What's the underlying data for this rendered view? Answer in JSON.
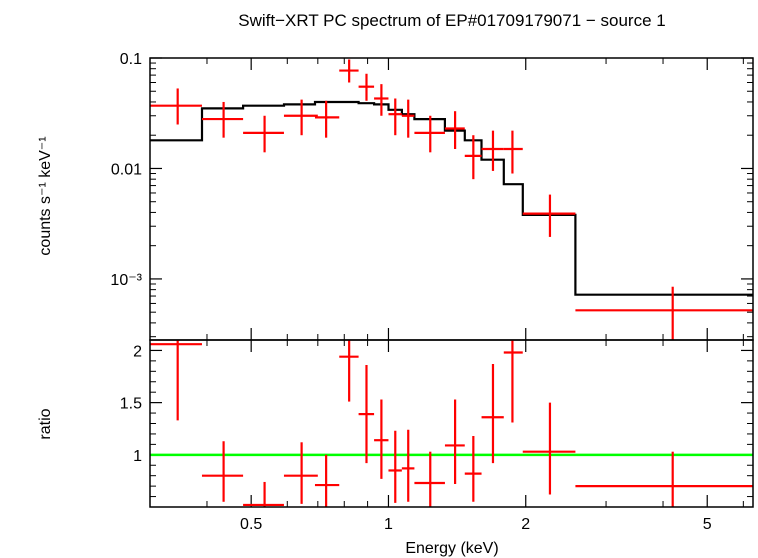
{
  "chart_data": {
    "type": "scatter",
    "title": "Swift−XRT PC spectrum of EP#01709179071 − source 1",
    "xlabel": "Energy (keV)",
    "x_scale": "log",
    "xlim": [
      0.3,
      6.3
    ],
    "x_ticks": [
      {
        "value": 0.5,
        "label": "0.5"
      },
      {
        "value": 1,
        "label": "1"
      },
      {
        "value": 2,
        "label": "2"
      },
      {
        "value": 5,
        "label": "5"
      }
    ],
    "colors": {
      "data": "#ff0000",
      "model": "#000000",
      "unity": "#00ff00"
    },
    "top_panel": {
      "ylabel": "counts s⁻¹ keV⁻¹",
      "y_scale": "log",
      "ylim": [
        0.00028,
        0.1
      ],
      "y_ticks": [
        {
          "value": 0.1,
          "label": "0.1"
        },
        {
          "value": 0.01,
          "label": "0.01"
        },
        {
          "value": 0.001,
          "label": "10⁻³"
        }
      ],
      "series": [
        {
          "type": "errorbar",
          "points": [
            {
              "x": 0.345,
              "xlo": 0.3,
              "xhi": 0.39,
              "y": 0.037,
              "ylo": 0.025,
              "yhi": 0.053
            },
            {
              "x": 0.435,
              "xlo": 0.39,
              "xhi": 0.48,
              "y": 0.028,
              "ylo": 0.019,
              "yhi": 0.04
            },
            {
              "x": 0.535,
              "xlo": 0.48,
              "xhi": 0.59,
              "y": 0.021,
              "ylo": 0.014,
              "yhi": 0.03
            },
            {
              "x": 0.645,
              "xlo": 0.59,
              "xhi": 0.7,
              "y": 0.03,
              "ylo": 0.02,
              "yhi": 0.042
            },
            {
              "x": 0.73,
              "xlo": 0.69,
              "xhi": 0.78,
              "y": 0.029,
              "ylo": 0.019,
              "yhi": 0.041
            },
            {
              "x": 0.82,
              "xlo": 0.78,
              "xhi": 0.86,
              "y": 0.077,
              "ylo": 0.06,
              "yhi": 0.097
            },
            {
              "x": 0.895,
              "xlo": 0.86,
              "xhi": 0.93,
              "y": 0.055,
              "ylo": 0.041,
              "yhi": 0.072
            },
            {
              "x": 0.965,
              "xlo": 0.93,
              "xhi": 1.0,
              "y": 0.043,
              "ylo": 0.03,
              "yhi": 0.058
            },
            {
              "x": 1.035,
              "xlo": 1.0,
              "xhi": 1.07,
              "y": 0.031,
              "ylo": 0.02,
              "yhi": 0.043
            },
            {
              "x": 1.105,
              "xlo": 1.07,
              "xhi": 1.14,
              "y": 0.03,
              "ylo": 0.019,
              "yhi": 0.042
            },
            {
              "x": 1.235,
              "xlo": 1.14,
              "xhi": 1.33,
              "y": 0.021,
              "ylo": 0.014,
              "yhi": 0.03
            },
            {
              "x": 1.4,
              "xlo": 1.33,
              "xhi": 1.47,
              "y": 0.023,
              "ylo": 0.015,
              "yhi": 0.033
            },
            {
              "x": 1.535,
              "xlo": 1.47,
              "xhi": 1.6,
              "y": 0.013,
              "ylo": 0.008,
              "yhi": 0.02
            },
            {
              "x": 1.695,
              "xlo": 1.6,
              "xhi": 1.79,
              "y": 0.015,
              "ylo": 0.0095,
              "yhi": 0.022
            },
            {
              "x": 1.87,
              "xlo": 1.79,
              "xhi": 1.97,
              "y": 0.015,
              "ylo": 0.009,
              "yhi": 0.022
            },
            {
              "x": 2.26,
              "xlo": 1.97,
              "xhi": 2.57,
              "y": 0.0039,
              "ylo": 0.0024,
              "yhi": 0.0058
            },
            {
              "x": 4.2,
              "xlo": 2.57,
              "xhi": 6.3,
              "y": 0.00052,
              "ylo": 0.00028,
              "yhi": 0.00085
            }
          ]
        },
        {
          "type": "step",
          "edges": [
            0.3,
            0.39,
            0.48,
            0.59,
            0.69,
            0.78,
            0.86,
            0.93,
            1.0,
            1.07,
            1.14,
            1.33,
            1.47,
            1.6,
            1.79,
            1.97,
            2.57,
            6.3
          ],
          "values": [
            0.018,
            0.035,
            0.037,
            0.038,
            0.04,
            0.04,
            0.039,
            0.038,
            0.034,
            0.031,
            0.028,
            0.022,
            0.018,
            0.012,
            0.0072,
            0.0038,
            0.00072
          ]
        }
      ]
    },
    "bottom_panel": {
      "ylabel": "ratio",
      "y_scale": "linear",
      "ylim": [
        0.5,
        2.1
      ],
      "y_ticks": [
        {
          "value": 1,
          "label": "1"
        },
        {
          "value": 1.5,
          "label": "1.5"
        },
        {
          "value": 2,
          "label": "2"
        }
      ],
      "unity_line": 1,
      "series": [
        {
          "type": "errorbar",
          "points": [
            {
              "x": 0.345,
              "xlo": 0.3,
              "xhi": 0.39,
              "y": 2.06,
              "ylo": 1.33,
              "yhi": 2.1
            },
            {
              "x": 0.435,
              "xlo": 0.39,
              "xhi": 0.48,
              "y": 0.8,
              "ylo": 0.55,
              "yhi": 1.13
            },
            {
              "x": 0.535,
              "xlo": 0.48,
              "xhi": 0.59,
              "y": 0.52,
              "ylo": 0.5,
              "yhi": 0.74
            },
            {
              "x": 0.645,
              "xlo": 0.59,
              "xhi": 0.7,
              "y": 0.8,
              "ylo": 0.53,
              "yhi": 1.12
            },
            {
              "x": 0.73,
              "xlo": 0.69,
              "xhi": 0.78,
              "y": 0.71,
              "ylo": 0.5,
              "yhi": 1.0
            },
            {
              "x": 0.82,
              "xlo": 0.78,
              "xhi": 0.86,
              "y": 1.94,
              "ylo": 1.51,
              "yhi": 2.1
            },
            {
              "x": 0.895,
              "xlo": 0.86,
              "xhi": 0.93,
              "y": 1.39,
              "ylo": 0.92,
              "yhi": 1.86
            },
            {
              "x": 0.965,
              "xlo": 0.93,
              "xhi": 1.0,
              "y": 1.14,
              "ylo": 0.77,
              "yhi": 1.53
            },
            {
              "x": 1.035,
              "xlo": 1.0,
              "xhi": 1.07,
              "y": 0.85,
              "ylo": 0.54,
              "yhi": 1.23
            },
            {
              "x": 1.105,
              "xlo": 1.07,
              "xhi": 1.14,
              "y": 0.87,
              "ylo": 0.55,
              "yhi": 1.24
            },
            {
              "x": 1.235,
              "xlo": 1.14,
              "xhi": 1.33,
              "y": 0.73,
              "ylo": 0.5,
              "yhi": 1.03
            },
            {
              "x": 1.4,
              "xlo": 1.33,
              "xhi": 1.47,
              "y": 1.09,
              "ylo": 0.72,
              "yhi": 1.53
            },
            {
              "x": 1.535,
              "xlo": 1.47,
              "xhi": 1.6,
              "y": 0.82,
              "ylo": 0.55,
              "yhi": 1.18
            },
            {
              "x": 1.695,
              "xlo": 1.6,
              "xhi": 1.79,
              "y": 1.36,
              "ylo": 0.92,
              "yhi": 1.87
            },
            {
              "x": 1.87,
              "xlo": 1.79,
              "xhi": 1.97,
              "y": 1.98,
              "ylo": 1.31,
              "yhi": 2.1
            },
            {
              "x": 2.26,
              "xlo": 1.97,
              "xhi": 2.57,
              "y": 1.03,
              "ylo": 0.62,
              "yhi": 1.5
            },
            {
              "x": 4.2,
              "xlo": 2.57,
              "xhi": 6.3,
              "y": 0.7,
              "ylo": 0.5,
              "yhi": 1.03
            }
          ]
        }
      ]
    }
  }
}
